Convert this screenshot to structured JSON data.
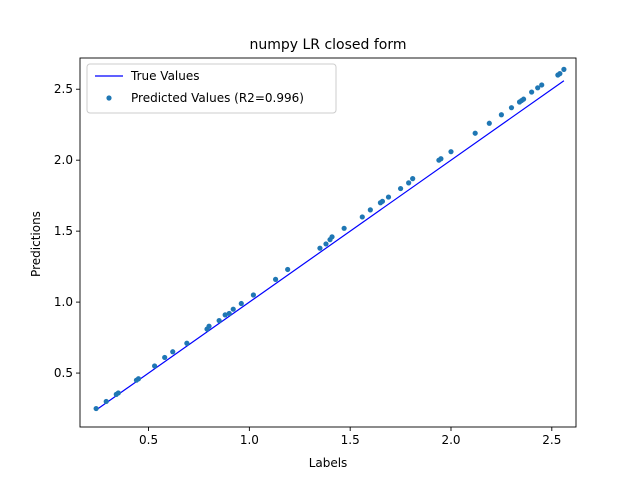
{
  "chart_data": {
    "type": "scatter",
    "title": "numpy LR closed form",
    "xlabel": "Labels",
    "ylabel": "Predictions",
    "xlim": [
      0.16,
      2.62
    ],
    "ylim": [
      0.12,
      2.72
    ],
    "xticks": [
      0.5,
      1.0,
      1.5,
      2.0,
      2.5
    ],
    "xtick_labels": [
      "0.5",
      "1.0",
      "1.5",
      "2.0",
      "2.5"
    ],
    "yticks": [
      0.5,
      1.0,
      1.5,
      2.0,
      2.5
    ],
    "ytick_labels": [
      "0.5",
      "1.0",
      "1.5",
      "2.0",
      "2.5"
    ],
    "grid": false,
    "legend": {
      "position": "upper-left",
      "entries": [
        "True Values",
        "Predicted Values (R2=0.996)"
      ]
    },
    "series": [
      {
        "name": "True Values",
        "kind": "line",
        "color": "#0000ff",
        "x": [
          0.24,
          2.56
        ],
        "y": [
          0.24,
          2.56
        ]
      },
      {
        "name": "Predicted Values (R2=0.996)",
        "kind": "scatter",
        "color": "#1f77b4",
        "x": [
          0.24,
          0.29,
          0.34,
          0.35,
          0.44,
          0.45,
          0.53,
          0.58,
          0.62,
          0.69,
          0.79,
          0.8,
          0.85,
          0.88,
          0.9,
          0.92,
          0.96,
          1.02,
          1.13,
          1.19,
          1.35,
          1.38,
          1.4,
          1.41,
          1.47,
          1.56,
          1.6,
          1.65,
          1.66,
          1.69,
          1.75,
          1.79,
          1.81,
          1.94,
          1.95,
          2.0,
          2.12,
          2.19,
          2.25,
          2.3,
          2.34,
          2.35,
          2.36,
          2.4,
          2.43,
          2.45,
          2.53,
          2.54,
          2.56
        ],
        "y": [
          0.25,
          0.3,
          0.35,
          0.36,
          0.45,
          0.46,
          0.55,
          0.61,
          0.65,
          0.71,
          0.81,
          0.83,
          0.87,
          0.91,
          0.92,
          0.95,
          0.99,
          1.05,
          1.16,
          1.23,
          1.38,
          1.41,
          1.44,
          1.46,
          1.52,
          1.6,
          1.65,
          1.7,
          1.71,
          1.74,
          1.8,
          1.84,
          1.87,
          2.0,
          2.01,
          2.06,
          2.19,
          2.26,
          2.32,
          2.37,
          2.41,
          2.42,
          2.43,
          2.48,
          2.51,
          2.53,
          2.6,
          2.61,
          2.64
        ]
      }
    ]
  }
}
